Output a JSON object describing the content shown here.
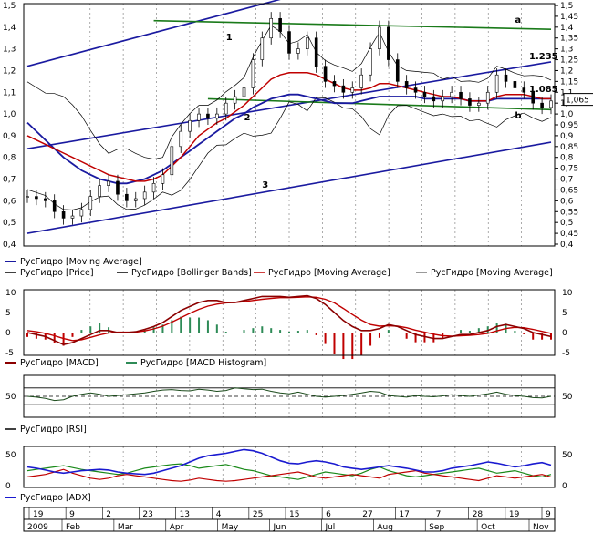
{
  "chart_data": [
    {
      "type": "line",
      "panel": "price",
      "ylim": [
        0.4,
        1.5
      ],
      "ticks": [
        "0,4",
        "0,45",
        "0,5",
        "0,55",
        "0,6",
        "0,65",
        "0,7",
        "0,75",
        "0,8",
        "0,85",
        "0,9",
        "0,95",
        "1,0",
        "1,05",
        "1,1",
        "1,15",
        "1,2",
        "1,25",
        "1,3",
        "1,35",
        "1,4",
        "1,45",
        "1,5"
      ],
      "left_ticks": [
        "0,4",
        "0,5",
        "0,6",
        "0,7",
        "0,8",
        "0,9",
        "1,0",
        "1,1",
        "1,2",
        "1,3",
        "1,4",
        "1,5"
      ],
      "last_value_label": "1,065",
      "levels": [
        {
          "label": "1.235",
          "value": 1.235
        },
        {
          "label": "1.085",
          "value": 1.085
        }
      ],
      "trendline_labels": [
        "1",
        "2",
        "3",
        "a",
        "b"
      ],
      "legend": [
        "РусГидро [Moving Average]",
        "РусГидро [Price]",
        "РусГидро [Bollinger Bands]",
        "РусГидро [Moving Average]",
        "РусГидро [Moving Average]"
      ],
      "price": [
        0.62,
        0.61,
        0.6,
        0.55,
        0.52,
        0.53,
        0.56,
        0.62,
        0.67,
        0.69,
        0.63,
        0.6,
        0.61,
        0.64,
        0.68,
        0.72,
        0.85,
        0.92,
        0.97,
        1.0,
        0.98,
        1.0,
        1.05,
        1.08,
        1.12,
        1.25,
        1.35,
        1.44,
        1.38,
        1.28,
        1.3,
        1.35,
        1.22,
        1.15,
        1.13,
        1.1,
        1.12,
        1.18,
        1.3,
        1.4,
        1.25,
        1.15,
        1.12,
        1.1,
        1.08,
        1.06,
        1.08,
        1.1,
        1.07,
        1.04,
        1.05,
        1.1,
        1.18,
        1.15,
        1.12,
        1.1,
        1.05,
        1.03,
        1.06
      ],
      "ma_red": [
        0.9,
        0.88,
        0.86,
        0.84,
        0.82,
        0.8,
        0.78,
        0.76,
        0.74,
        0.72,
        0.71,
        0.7,
        0.69,
        0.69,
        0.7,
        0.72,
        0.76,
        0.8,
        0.85,
        0.9,
        0.93,
        0.96,
        0.98,
        1.01,
        1.04,
        1.08,
        1.12,
        1.16,
        1.18,
        1.19,
        1.19,
        1.19,
        1.18,
        1.16,
        1.14,
        1.12,
        1.11,
        1.11,
        1.12,
        1.14,
        1.14,
        1.13,
        1.12,
        1.11,
        1.1,
        1.09,
        1.08,
        1.08,
        1.07,
        1.06,
        1.06,
        1.06,
        1.08,
        1.09,
        1.09,
        1.09,
        1.08,
        1.07,
        1.07
      ],
      "ma_blue": [
        0.96,
        0.92,
        0.88,
        0.84,
        0.8,
        0.77,
        0.74,
        0.72,
        0.7,
        0.69,
        0.68,
        0.68,
        0.69,
        0.7,
        0.72,
        0.74,
        0.77,
        0.8,
        0.83,
        0.86,
        0.89,
        0.92,
        0.95,
        0.98,
        1.0,
        1.03,
        1.05,
        1.07,
        1.08,
        1.09,
        1.09,
        1.08,
        1.07,
        1.06,
        1.05,
        1.05,
        1.05,
        1.06,
        1.07,
        1.08,
        1.08,
        1.08,
        1.08,
        1.08,
        1.07,
        1.07,
        1.07,
        1.07,
        1.07,
        1.06,
        1.06,
        1.06,
        1.07,
        1.07,
        1.07,
        1.07,
        1.07,
        1.07,
        1.07
      ]
    },
    {
      "type": "line",
      "panel": "macd",
      "ylim": [
        -5,
        10
      ],
      "ticks": [
        "10",
        "5",
        "0",
        "-5"
      ],
      "legend": [
        "РусГидро [MACD]",
        "РусГидро [MACD Histogram]"
      ],
      "macd": [
        0,
        -0.5,
        -1,
        -2,
        -3,
        -2.5,
        -1.5,
        -0.5,
        0.5,
        0.5,
        0,
        0,
        0.2,
        0.8,
        1.5,
        2.5,
        4,
        5.5,
        6.5,
        7.5,
        8,
        8,
        7.5,
        7.5,
        8,
        8.5,
        9,
        9,
        9,
        8.8,
        9,
        9.2,
        8.5,
        7,
        5,
        3,
        1.5,
        0.5,
        0.5,
        1,
        2,
        1.5,
        0.5,
        -0.5,
        -1,
        -1.5,
        -1.5,
        -1,
        -0.5,
        -0.5,
        0,
        0.5,
        1.5,
        2,
        1.5,
        1,
        0,
        -0.5,
        -1
      ],
      "signal": [
        0.5,
        0.2,
        -0.2,
        -0.8,
        -1.5,
        -2,
        -1.8,
        -1.2,
        -0.6,
        -0.1,
        0.1,
        0.1,
        0.1,
        0.4,
        0.9,
        1.6,
        2.6,
        3.7,
        4.8,
        5.8,
        6.6,
        7.1,
        7.4,
        7.5,
        7.7,
        8,
        8.3,
        8.5,
        8.7,
        8.7,
        8.8,
        8.9,
        8.8,
        8.3,
        7.4,
        6,
        4.5,
        3.1,
        2,
        1.6,
        1.7,
        1.6,
        1.2,
        0.6,
        0.1,
        -0.4,
        -0.8,
        -0.9,
        -0.8,
        -0.7,
        -0.5,
        -0.2,
        0.4,
        1,
        1.3,
        1.2,
        0.8,
        0.3,
        -0.2
      ]
    },
    {
      "type": "line",
      "panel": "rsi",
      "ylim": [
        0,
        100
      ],
      "ticks": [
        "50"
      ],
      "legend": [
        "РусГидро [RSI]"
      ],
      "rsi": [
        50,
        48,
        45,
        40,
        42,
        50,
        55,
        58,
        55,
        50,
        52,
        54,
        56,
        58,
        62,
        65,
        66,
        64,
        63,
        67,
        65,
        62,
        64,
        70,
        68,
        66,
        67,
        62,
        58,
        56,
        60,
        55,
        50,
        48,
        50,
        52,
        55,
        58,
        62,
        60,
        52,
        50,
        48,
        52,
        50,
        49,
        51,
        54,
        52,
        50,
        53,
        56,
        60,
        55,
        52,
        50,
        47,
        46,
        50
      ],
      "ref_lines": [
        30,
        50,
        70
      ]
    },
    {
      "type": "line",
      "panel": "adx",
      "ylim": [
        0,
        60
      ],
      "ticks": [
        "50",
        "0"
      ],
      "legend": [
        "РусГидро [ADX]"
      ],
      "adx": [
        30,
        28,
        25,
        22,
        20,
        22,
        24,
        25,
        26,
        25,
        22,
        20,
        19,
        18,
        20,
        24,
        28,
        32,
        38,
        44,
        48,
        50,
        52,
        55,
        58,
        56,
        52,
        46,
        40,
        36,
        35,
        38,
        40,
        38,
        35,
        30,
        28,
        26,
        28,
        30,
        32,
        30,
        28,
        25,
        22,
        22,
        24,
        28,
        30,
        32,
        35,
        38,
        36,
        33,
        30,
        32,
        35,
        37,
        33
      ],
      "pdi": [
        24,
        26,
        28,
        30,
        32,
        29,
        26,
        24,
        22,
        20,
        18,
        20,
        24,
        28,
        30,
        32,
        34,
        35,
        32,
        28,
        30,
        32,
        34,
        30,
        26,
        24,
        20,
        16,
        14,
        12,
        10,
        14,
        18,
        22,
        20,
        18,
        16,
        20,
        26,
        30,
        24,
        20,
        16,
        14,
        16,
        18,
        20,
        22,
        24,
        26,
        28,
        24,
        20,
        22,
        24,
        20,
        16,
        14,
        18
      ],
      "mdi": [
        14,
        16,
        18,
        22,
        26,
        20,
        16,
        12,
        10,
        12,
        16,
        18,
        16,
        14,
        12,
        10,
        8,
        7,
        9,
        12,
        10,
        8,
        7,
        8,
        10,
        12,
        14,
        16,
        18,
        20,
        22,
        18,
        14,
        12,
        14,
        16,
        18,
        16,
        14,
        12,
        18,
        20,
        22,
        24,
        20,
        18,
        16,
        14,
        12,
        10,
        8,
        12,
        16,
        14,
        12,
        14,
        16,
        18,
        14
      ]
    }
  ],
  "x_axis": {
    "year": "2009",
    "day_labels": [
      "19",
      "9",
      "2",
      "23",
      "13",
      "4",
      "25",
      "15",
      "6",
      "27",
      "17",
      "7",
      "28",
      "19",
      "9"
    ],
    "month_labels": [
      "Feb",
      "Mar",
      "Apr",
      "May",
      "Jun",
      "Jul",
      "Aug",
      "Sep",
      "Oct",
      "Nov"
    ]
  },
  "colors": {
    "price": "#000000",
    "ma_red": "#c00000",
    "ma_blue": "#1a1aa0",
    "trend": "#1a1aa0",
    "resistance": "#1a7a1a",
    "macd": "#8b0000",
    "signal": "#c00000",
    "hist_pos": "#2e8b57",
    "hist_neg": "#c00000",
    "rsi": "#1a4a1a",
    "adx": "#1a1ad0",
    "pdi": "#1a8a1a",
    "mdi": "#c00000"
  }
}
